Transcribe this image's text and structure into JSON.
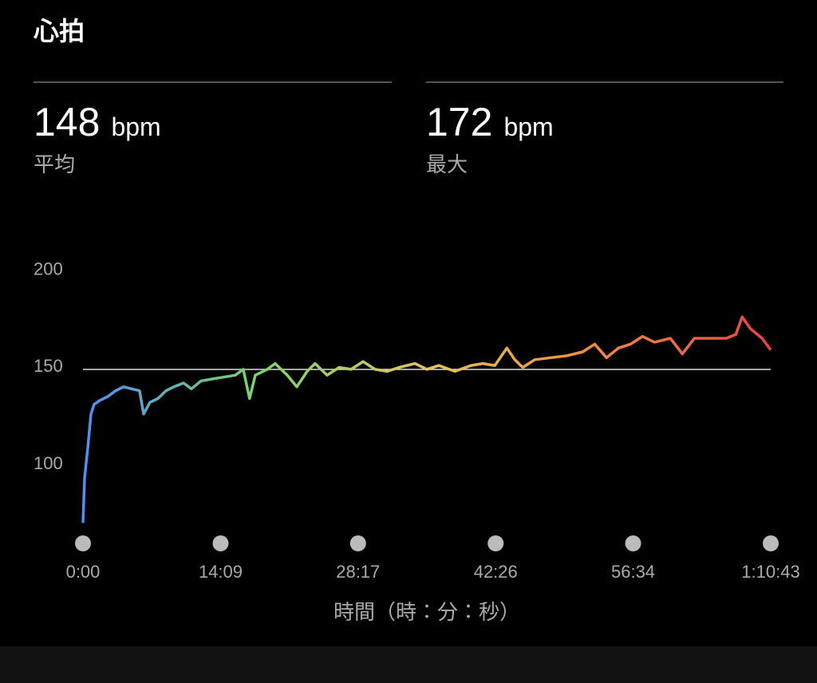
{
  "header": {
    "title": "心拍"
  },
  "stats": [
    {
      "value": 148,
      "unit": "bpm",
      "label": "平均"
    },
    {
      "value": 172,
      "unit": "bpm",
      "label": "最大"
    }
  ],
  "chart_data": {
    "type": "line",
    "x_label": "時間（時：分：秒）",
    "x": [
      0,
      10,
      30,
      49,
      69,
      103,
      153,
      202,
      251,
      300,
      349,
      374,
      413,
      462,
      512,
      561,
      620,
      669,
      728,
      792,
      866,
      940,
      989,
      1028,
      1063,
      1137,
      1186,
      1260,
      1319,
      1383,
      1432,
      1506,
      1580,
      1654,
      1728,
      1802,
      1876,
      1950,
      2048,
      2122,
      2196,
      2295,
      2393,
      2467,
      2541,
      2615,
      2664,
      2713,
      2787,
      2886,
      2984,
      3083,
      3157,
      3230,
      3304,
      3378,
      3452,
      3526,
      3624,
      3698,
      3772,
      3870,
      3969,
      4028,
      4067,
      4117,
      4190,
      4243
    ],
    "series": [
      {
        "values": [
          69,
          92,
          108,
          125,
          130,
          132,
          134,
          137,
          139,
          138,
          137,
          125,
          131,
          133,
          137,
          139,
          141,
          138,
          142,
          143,
          144,
          145,
          148,
          133,
          145,
          148,
          151,
          145,
          139,
          147,
          151,
          145,
          149,
          148,
          152,
          148,
          147,
          149,
          151,
          148,
          150,
          147,
          150,
          151,
          150,
          159,
          153,
          149,
          153,
          154,
          155,
          157,
          161,
          154,
          159,
          161,
          165,
          162,
          164,
          156,
          164,
          164,
          164,
          166,
          175,
          169,
          164,
          158
        ]
      }
    ],
    "gradient": [
      "#4f8ef7",
      "#7ad36e",
      "#e3c45c",
      "#f08a3e",
      "#e8434a"
    ],
    "xlim": [
      0,
      4243
    ],
    "xticks": [
      {
        "value": 0,
        "label": "0:00"
      },
      {
        "value": 849,
        "label": "14:09"
      },
      {
        "value": 1697,
        "label": "28:17"
      },
      {
        "value": 2546,
        "label": "42:26"
      },
      {
        "value": 3394,
        "label": "56:34"
      },
      {
        "value": 4243,
        "label": "1:10:43"
      }
    ],
    "ylim": [
      65,
      210
    ],
    "yticks": [
      100,
      150,
      200
    ]
  }
}
